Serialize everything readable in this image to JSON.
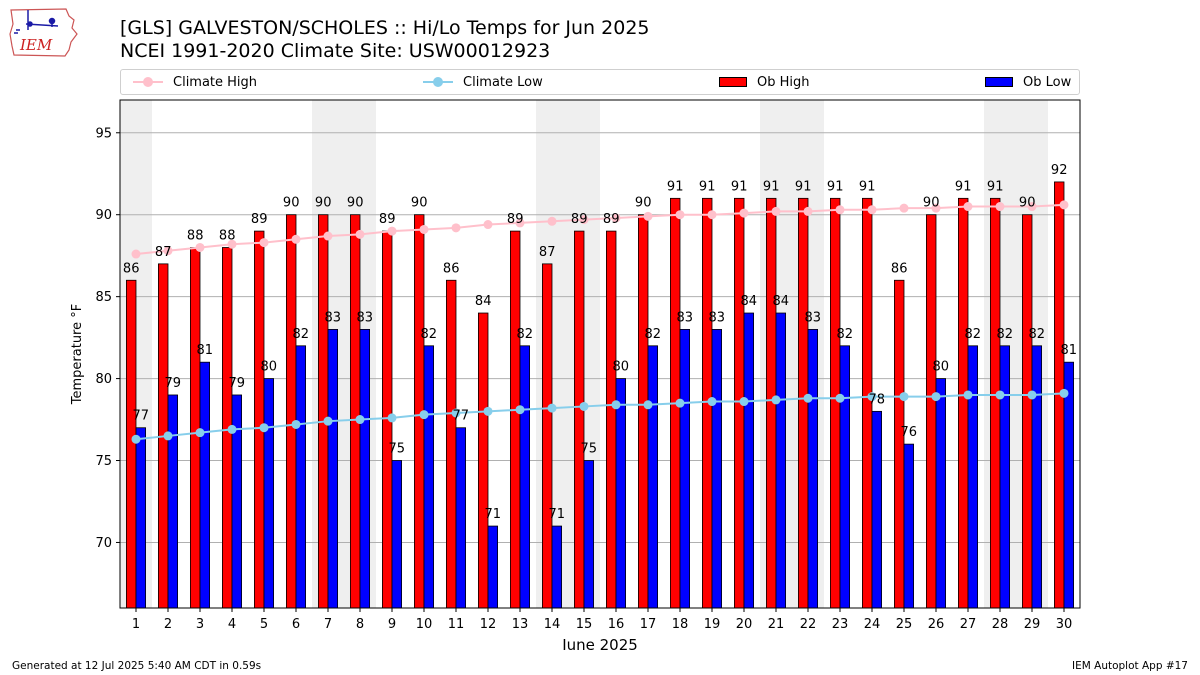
{
  "header": {
    "title_line1": "[GLS] GALVESTON/SCHOLES :: Hi/Lo Temps for Jun 2025",
    "title_line2": "NCEI 1991-2020 Climate Site: USW00012923",
    "logo_text": "IEM"
  },
  "legend": {
    "items": [
      {
        "label": "Climate High",
        "kind": "line",
        "color": "#ffc0cb"
      },
      {
        "label": "Climate Low",
        "kind": "line",
        "color": "#87ceeb"
      },
      {
        "label": "Ob High",
        "kind": "bar",
        "color": "#ff0000"
      },
      {
        "label": "Ob Low",
        "kind": "bar",
        "color": "#0000ff"
      }
    ],
    "placement": "top"
  },
  "footer": {
    "left": "Generated at 12 Jul 2025 5:40 AM CDT in 0.59s",
    "right": "IEM Autoplot App #17"
  },
  "chart_data": {
    "type": "bar",
    "xlabel": "June 2025",
    "ylabel": "Temperature °F",
    "ylim": [
      66,
      97
    ],
    "yticks": [
      70,
      75,
      80,
      85,
      90,
      95
    ],
    "grid": true,
    "categories": [
      "1",
      "2",
      "3",
      "4",
      "5",
      "6",
      "7",
      "8",
      "9",
      "10",
      "11",
      "12",
      "13",
      "14",
      "15",
      "16",
      "17",
      "18",
      "19",
      "20",
      "21",
      "22",
      "23",
      "24",
      "25",
      "26",
      "27",
      "28",
      "29",
      "30"
    ],
    "weekend_shading": [
      [
        1,
        1
      ],
      [
        7,
        8
      ],
      [
        14,
        15
      ],
      [
        21,
        22
      ],
      [
        28,
        29
      ]
    ],
    "series": [
      {
        "name": "Ob High",
        "kind": "bar",
        "color": "#ff0000",
        "values": [
          86,
          87,
          88,
          88,
          89,
          90,
          90,
          90,
          89,
          90,
          86,
          84,
          89,
          87,
          89,
          89,
          90,
          91,
          91,
          91,
          91,
          91,
          91,
          91,
          86,
          90,
          91,
          91,
          90,
          92
        ]
      },
      {
        "name": "Ob Low",
        "kind": "bar",
        "color": "#0000ff",
        "values": [
          77,
          79,
          81,
          79,
          80,
          82,
          83,
          83,
          75,
          82,
          77,
          71,
          82,
          71,
          75,
          80,
          82,
          83,
          83,
          84,
          84,
          83,
          82,
          78,
          76,
          80,
          82,
          82,
          82,
          81
        ]
      },
      {
        "name": "Climate High",
        "kind": "line",
        "color": "#ffc0cb",
        "values": [
          87.6,
          87.8,
          88.0,
          88.2,
          88.3,
          88.5,
          88.7,
          88.8,
          89.0,
          89.1,
          89.2,
          89.4,
          89.5,
          89.6,
          89.7,
          89.8,
          89.9,
          90.0,
          90.0,
          90.1,
          90.2,
          90.2,
          90.3,
          90.3,
          90.4,
          90.4,
          90.5,
          90.5,
          90.5,
          90.6
        ]
      },
      {
        "name": "Climate Low",
        "kind": "line",
        "color": "#87ceeb",
        "values": [
          76.3,
          76.5,
          76.7,
          76.9,
          77.0,
          77.2,
          77.4,
          77.5,
          77.6,
          77.8,
          77.9,
          78.0,
          78.1,
          78.2,
          78.3,
          78.4,
          78.4,
          78.5,
          78.6,
          78.6,
          78.7,
          78.8,
          78.8,
          78.9,
          78.9,
          78.9,
          79.0,
          79.0,
          79.0,
          79.1
        ]
      }
    ]
  }
}
